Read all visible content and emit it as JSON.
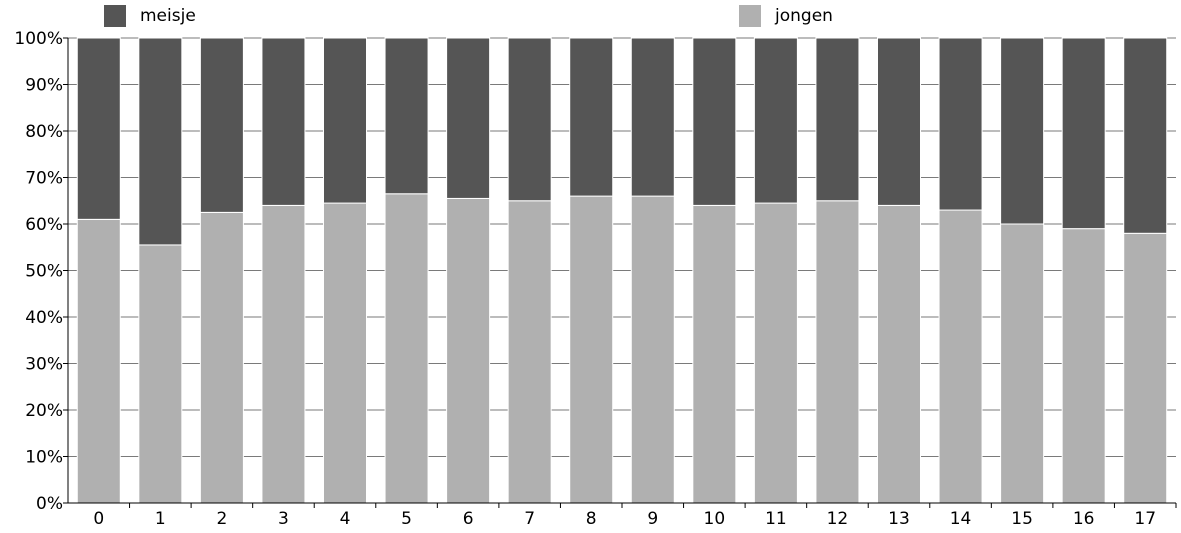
{
  "chart_data": {
    "type": "bar",
    "stacked": true,
    "percent": true,
    "categories": [
      "0",
      "1",
      "2",
      "3",
      "4",
      "5",
      "6",
      "7",
      "8",
      "9",
      "10",
      "11",
      "12",
      "13",
      "14",
      "15",
      "16",
      "17"
    ],
    "series": [
      {
        "name": "jongen",
        "color": "#b0b0b0",
        "values": [
          61,
          55.5,
          62.5,
          64,
          64.5,
          66.5,
          65.5,
          65,
          66,
          66,
          64,
          64.5,
          65,
          64,
          63,
          60,
          59,
          58
        ]
      },
      {
        "name": "meisje",
        "color": "#555555",
        "values": [
          39,
          44.5,
          37.5,
          36,
          35.5,
          33.5,
          34.5,
          35,
          34,
          34,
          36,
          35.5,
          35,
          36,
          37,
          40,
          41,
          42
        ]
      }
    ],
    "yticks": [
      "0%",
      "10%",
      "20%",
      "30%",
      "40%",
      "50%",
      "60%",
      "70%",
      "80%",
      "90%",
      "100%"
    ],
    "ylim": [
      0,
      100
    ],
    "grid": true,
    "legend": {
      "placement": "top",
      "items": [
        {
          "label": "meisje",
          "color": "#555555"
        },
        {
          "label": "jongen",
          "color": "#b0b0b0"
        }
      ]
    }
  }
}
